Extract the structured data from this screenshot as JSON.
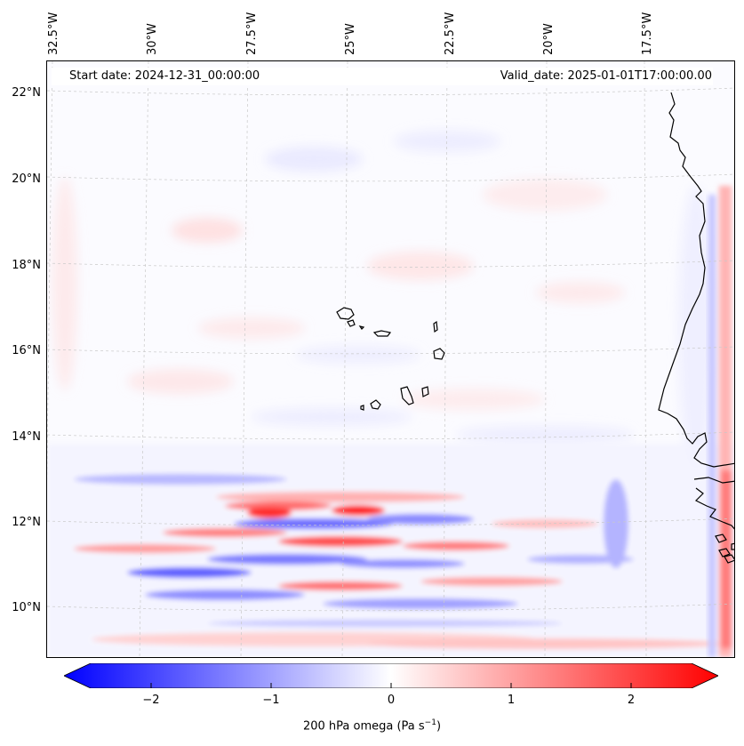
{
  "map": {
    "longitude_labels": [
      "32.5°W",
      "30°W",
      "27.5°W",
      "25°W",
      "22.5°W",
      "20°W",
      "17.5°W"
    ],
    "latitude_labels": [
      "22°N",
      "20°N",
      "18°N",
      "16°N",
      "14°N",
      "12°N",
      "10°N"
    ],
    "start_date": "Start date: 2024-12-31_00:00:00",
    "valid_date": "Valid_date: 2025-01-01T17:00:00.00",
    "features": [
      "Cape Verde islands",
      "West African coastline (Senegal, Gambia, Guinea-Bissau)"
    ]
  },
  "colorbar": {
    "ticks": [
      "−2",
      "−1",
      "0",
      "1",
      "2"
    ],
    "tick_values": [
      -2,
      -1,
      0,
      1,
      2
    ],
    "range": [
      -2.5,
      2.5
    ],
    "label_main": "200 hPa omega (Pa s",
    "label_exp": "−1",
    "label_end": ")",
    "colormap": "bwr",
    "color_low": "#0000ff",
    "color_mid": "#ffffff",
    "color_high": "#ff0000"
  }
}
